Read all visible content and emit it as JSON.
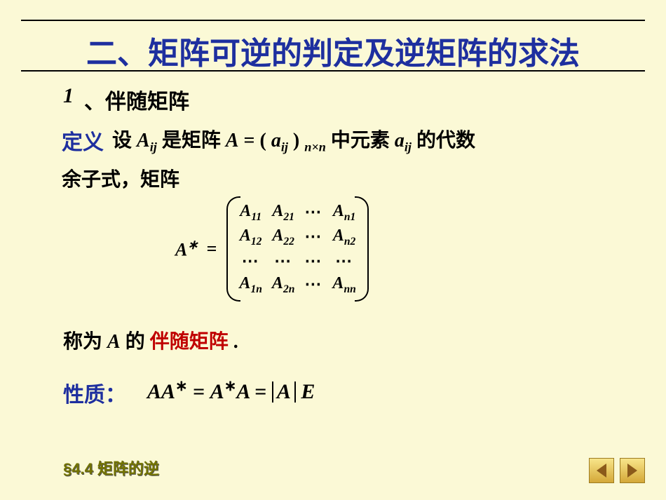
{
  "background_color": "#fbf9d6",
  "title": {
    "text": "二、矩阵可逆的判定及逆矩阵的求法",
    "color": "#1e2f9f",
    "fontsize": 44,
    "underline_color": "#000000"
  },
  "section": {
    "number": "1",
    "label": "、伴随矩阵"
  },
  "definition": {
    "label": "定义",
    "label_color": "#1e2f9f",
    "prefix": "设 ",
    "Aij_base": "A",
    "Aij_sub": "ij",
    "mid1": " 是矩阵 ",
    "A": "A",
    "eq": " = ",
    "lparen": "(",
    "aij_base": "a",
    "aij_sub": "ij",
    "rparen": ")",
    "size_sub": "n×n",
    "mid2": " 中元素 ",
    "aij2_base": "a",
    "aij2_sub": "ij",
    "tail": "的代数",
    "line2": "余子式，矩阵"
  },
  "matrix": {
    "lhs_base": "A",
    "lhs_star": "∗",
    "eq": "=",
    "rows": [
      [
        {
          "b": "A",
          "s": "11"
        },
        {
          "b": "A",
          "s": "21"
        },
        {
          "dots": "⋯"
        },
        {
          "b": "A",
          "s": "n1"
        }
      ],
      [
        {
          "b": "A",
          "s": "12"
        },
        {
          "b": "A",
          "s": "22"
        },
        {
          "dots": "⋯"
        },
        {
          "b": "A",
          "s": "n2"
        }
      ],
      [
        {
          "dots": "⋯"
        },
        {
          "dots": "⋯"
        },
        {
          "dots": "⋯"
        },
        {
          "dots": "⋯"
        }
      ],
      [
        {
          "b": "A",
          "s": "1n"
        },
        {
          "b": "A",
          "s": "2n"
        },
        {
          "dots": "⋯"
        },
        {
          "b": "A",
          "s": "nn"
        }
      ]
    ]
  },
  "conclusion": {
    "pre": "称为 ",
    "A": "A",
    "mid": " 的",
    "adj": "伴随矩阵",
    "adj_color": "#c00000",
    "dot": " ."
  },
  "property": {
    "label": "性质：",
    "label_color": "#1e2f9f",
    "t1": "AA",
    "star": "∗",
    "eq1": " = ",
    "t2": "A",
    "t3": "A",
    "eq2": " = ",
    "detA": "A",
    "E": "E"
  },
  "footer": {
    "text": "§4.4  矩阵的逆",
    "color": "#737300"
  },
  "nav": {
    "prev_icon": "triangle-left",
    "next_icon": "triangle-right",
    "btn_bg": "#d4a838",
    "arrow_color": "#8b5a1a"
  }
}
